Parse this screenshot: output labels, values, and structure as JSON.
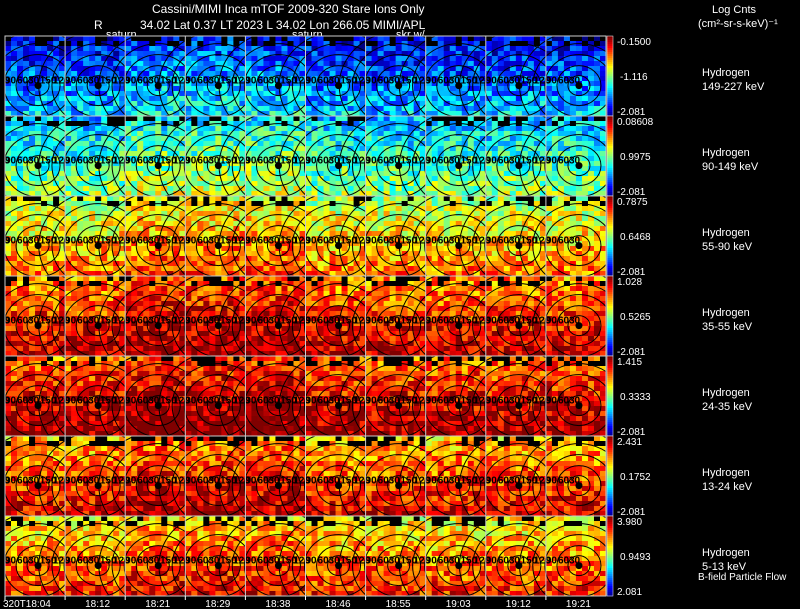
{
  "header": {
    "line1": "Cassini/MIMI Inca mTOF  2009-320   Stare   Ions Only",
    "r_label": "R",
    "line2": "34.02 Lat 0.37 LT 2023 L       34.02 Lon       266.05  MIMI/APL",
    "overlay1": "saturn",
    "overlay2": "saturn",
    "overlay3": "skr w/",
    "units_title": "Log Cnts",
    "units_sub": "(cm²-sr-s-keV)⁻¹"
  },
  "footer": {
    "flow_label": "B-field Particle Flow"
  },
  "chart_data": {
    "type": "heatmap",
    "title": "Cassini/MIMI Inca mTOF  2009-320   Stare   Ions Only",
    "x_ticks": [
      "320T18:04",
      "18:12",
      "18:21",
      "18:29",
      "18:38",
      "18:46",
      "18:55",
      "19:03",
      "19:12",
      "19:21"
    ],
    "frames_per_panel": 10,
    "contour_levels": [
      "30",
      "60",
      "90",
      "120",
      "150"
    ],
    "colorbar": "rainbow (blue = low, red = high)",
    "panels": [
      {
        "species": "Hydrogen",
        "energy": "149-227 keV",
        "cmax": "-0.1500",
        "cmid": "-1.116",
        "cmin": "-2.081",
        "intensity": 0.18
      },
      {
        "species": "Hydrogen",
        "energy": "90-149 keV",
        "cmax": "0.08608",
        "cmid": "0.9975",
        "cmin": "-2.081",
        "intensity": 0.38
      },
      {
        "species": "Hydrogen",
        "energy": "55-90 keV",
        "cmax": "0.7875",
        "cmid": "0.6468",
        "cmin": "-2.081",
        "intensity": 0.62
      },
      {
        "species": "Hydrogen",
        "energy": "35-55 keV",
        "cmax": "1.028",
        "cmid": "0.5265",
        "cmin": "-2.081",
        "intensity": 0.8
      },
      {
        "species": "Hydrogen",
        "energy": "24-35 keV",
        "cmax": "1.415",
        "cmid": "0.3333",
        "cmin": "-2.081",
        "intensity": 0.84
      },
      {
        "species": "Hydrogen",
        "energy": "13-24 keV",
        "cmax": "2.431",
        "cmid": "0.1752",
        "cmin": "-2.081",
        "intensity": 0.76
      },
      {
        "species": "Hydrogen",
        "energy": "5-13 keV",
        "cmax": "3.980",
        "cmid": "0.9493",
        "cmin": "2.081",
        "intensity": 0.7
      }
    ]
  }
}
